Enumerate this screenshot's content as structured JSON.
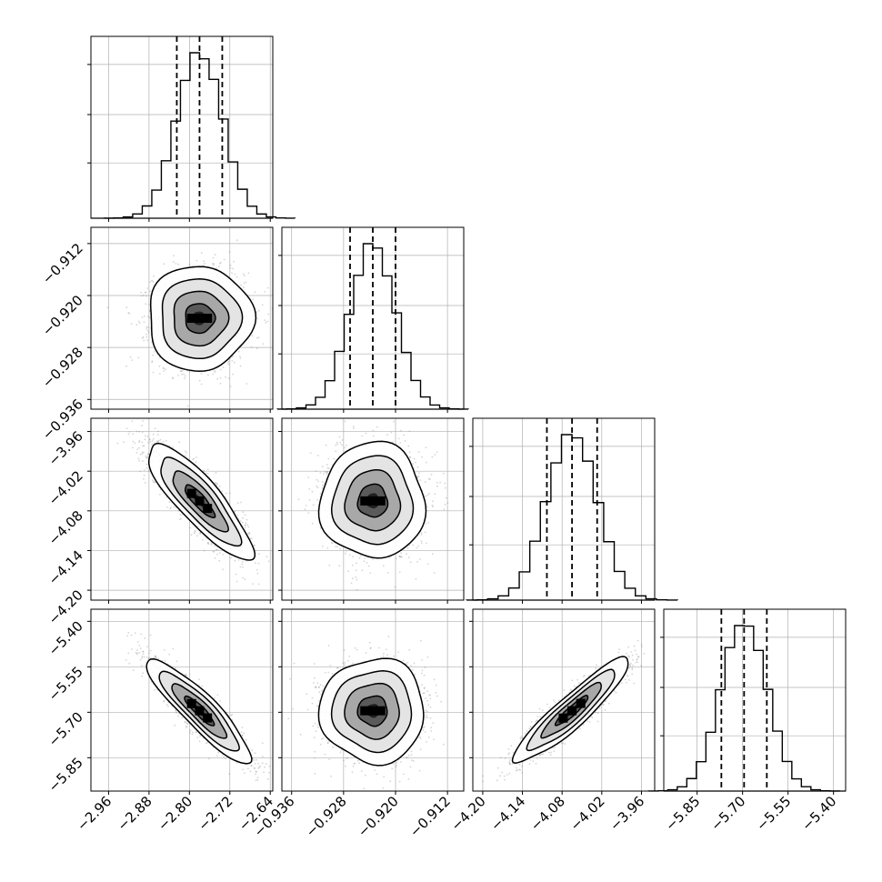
{
  "chart_data": {
    "type": "corner",
    "parameters": [
      {
        "name": "",
        "mean": -2.78,
        "std": 0.045,
        "quantiles": [
          -2.825,
          -2.78,
          -2.735
        ],
        "range": [
          -2.995,
          -2.635
        ],
        "ticks": [
          -2.96,
          -2.88,
          -2.8,
          -2.72,
          -2.64
        ],
        "tick_labels": [
          "−2.96",
          "−2.88",
          "−2.80",
          "−2.72",
          "−2.64"
        ]
      },
      {
        "name": "",
        "mean": -0.9235,
        "std": 0.0035,
        "quantiles": [
          -0.927,
          -0.9235,
          -0.92
        ],
        "range": [
          -0.9375,
          -0.9095
        ],
        "ticks": [
          -0.936,
          -0.928,
          -0.92,
          -0.912
        ],
        "tick_labels": [
          "−0.936",
          "−0.928",
          "−0.920",
          "−0.912"
        ]
      },
      {
        "name": "",
        "mean": -4.065,
        "std": 0.038,
        "quantiles": [
          -4.103,
          -4.065,
          -4.027
        ],
        "range": [
          -4.215,
          -3.94
        ],
        "ticks": [
          -4.2,
          -4.14,
          -4.08,
          -4.02,
          -3.96
        ],
        "tick_labels": [
          "−4.20",
          "−4.14",
          "−4.08",
          "−4.02",
          "−3.96"
        ]
      },
      {
        "name": "",
        "mean": -5.695,
        "std": 0.075,
        "quantiles": [
          -5.77,
          -5.695,
          -5.62
        ],
        "range": [
          -5.96,
          -5.36
        ],
        "ticks": [
          -5.85,
          -5.7,
          -5.55,
          -5.4
        ],
        "tick_labels": [
          "−5.85",
          "−5.70",
          "−5.55",
          "−5.40"
        ]
      }
    ],
    "correlations": [
      {
        "pair": [
          0,
          1
        ],
        "rho": 0.0
      },
      {
        "pair": [
          0,
          2
        ],
        "rho": -0.85
      },
      {
        "pair": [
          1,
          2
        ],
        "rho": 0.0
      },
      {
        "pair": [
          0,
          3
        ],
        "rho": -0.9
      },
      {
        "pair": [
          1,
          3
        ],
        "rho": 0.0
      },
      {
        "pair": [
          2,
          3
        ],
        "rho": 0.92
      }
    ],
    "histogram_bins": 20,
    "samples_per_panel": 2500,
    "grid": true,
    "colors": {
      "line": "#000000",
      "points": "#888888",
      "density": "#000000",
      "grid": "#b0b0b0"
    }
  }
}
